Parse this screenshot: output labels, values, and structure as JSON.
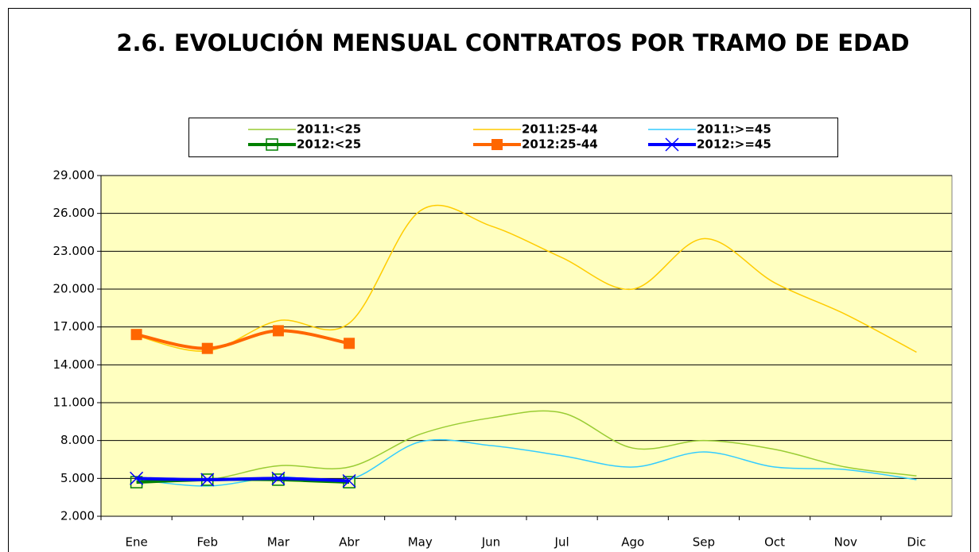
{
  "chart_data": {
    "type": "line",
    "title": "2.6. EVOLUCIÓN MENSUAL CONTRATOS POR TRAMO DE EDAD",
    "categories": [
      "Ene",
      "Feb",
      "Mar",
      "Abr",
      "May",
      "Jun",
      "Jul",
      "Ago",
      "Sep",
      "Oct",
      "Nov",
      "Dic"
    ],
    "series": [
      {
        "name": "2011:<25",
        "color": "#99cc33",
        "values": [
          5000,
          4900,
          6000,
          5900,
          8500,
          9800,
          10200,
          7400,
          8000,
          7300,
          5900,
          5200
        ]
      },
      {
        "name": "2011:25-44",
        "color": "#ffcc00",
        "values": [
          16300,
          15100,
          17500,
          17300,
          26200,
          25000,
          22500,
          20000,
          24000,
          20500,
          18000,
          15000
        ]
      },
      {
        "name": "2011:>=45",
        "color": "#33ccff",
        "values": [
          4900,
          4400,
          5100,
          4900,
          7900,
          7600,
          6800,
          5900,
          7100,
          5900,
          5700,
          4900
        ]
      },
      {
        "name": "2012:<25",
        "color": "#008000",
        "marker": "square-open",
        "values": [
          4700,
          4900,
          4900,
          4700,
          null,
          null,
          null,
          null,
          null,
          null,
          null,
          null
        ]
      },
      {
        "name": "2012:25-44",
        "color": "#ff6600",
        "marker": "square",
        "values": [
          16400,
          15300,
          16700,
          15700,
          null,
          null,
          null,
          null,
          null,
          null,
          null,
          null
        ]
      },
      {
        "name": "2012:>=45",
        "color": "#0000ff",
        "marker": "x",
        "values": [
          5000,
          4900,
          5000,
          4800,
          null,
          null,
          null,
          null,
          null,
          null,
          null,
          null
        ]
      }
    ],
    "ylim": [
      2000,
      29000
    ],
    "yticks": [
      {
        "value": 2000,
        "label": "2.000"
      },
      {
        "value": 5000,
        "label": "5.000"
      },
      {
        "value": 8000,
        "label": "8.000"
      },
      {
        "value": 11000,
        "label": "11.000"
      },
      {
        "value": 14000,
        "label": "14.000"
      },
      {
        "value": 17000,
        "label": "17.000"
      },
      {
        "value": 20000,
        "label": "20.000"
      },
      {
        "value": 23000,
        "label": "23.000"
      },
      {
        "value": 26000,
        "label": "26.000"
      },
      {
        "value": 29000,
        "label": "29.000"
      }
    ],
    "grid": true,
    "background": "#ffffc0"
  }
}
